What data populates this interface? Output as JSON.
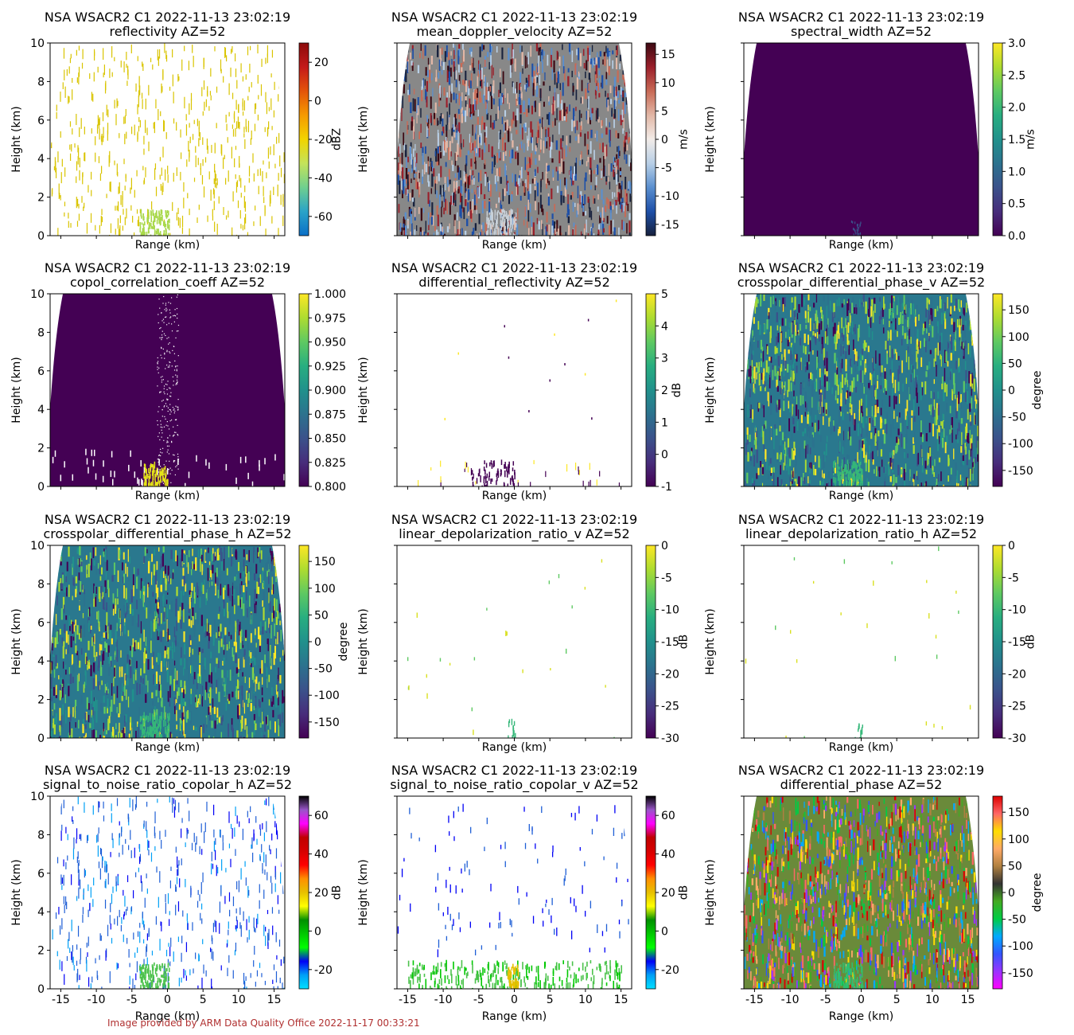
{
  "footer": "Image provided by ARM Data Quality Office 2022-11-17 00:33:21",
  "chart_data": [
    {
      "type": "heatmap",
      "title": "NSA WSACR2 C1 2022-11-13 23:02:19",
      "subtitle": "reflectivity  AZ=52",
      "xlabel": "Range (km)",
      "ylabel": "Height (km)",
      "xlim": [
        -16.5,
        16.5
      ],
      "ylim": [
        0,
        10
      ],
      "xticks": [
        "-15",
        "-10",
        "-5",
        "0",
        "5",
        "10",
        "15"
      ],
      "yticks": [
        "0",
        "2",
        "4",
        "6",
        "8",
        "10"
      ],
      "show_xticklabels": false,
      "show_yticklabels": true,
      "colorbar": {
        "label": "dBZ",
        "min": -70,
        "max": 30,
        "ticks": [
          "-60",
          "-40",
          "-20",
          "0",
          "20"
        ],
        "colormap": "HomeyerRainbow"
      },
      "pattern": "sparse_streaks",
      "base_color": "#d9c400",
      "bg_fill": false,
      "core_color": "#a8d84a"
    },
    {
      "type": "heatmap",
      "title": "NSA WSACR2 C1 2022-11-13 23:02:19",
      "subtitle": "mean_doppler_velocity  AZ=52",
      "xlabel": "Range (km)",
      "ylabel": "Height (km)",
      "xlim": [
        -16.5,
        16.5
      ],
      "ylim": [
        0,
        10
      ],
      "xticks": [
        "-15",
        "-10",
        "-5",
        "0",
        "5",
        "10",
        "15"
      ],
      "yticks": [
        "0",
        "2",
        "4",
        "6",
        "8",
        "10"
      ],
      "show_xticklabels": false,
      "show_yticklabels": false,
      "colorbar": {
        "label": "m/s",
        "min": -17,
        "max": 17,
        "ticks": [
          "-15",
          "-10",
          "-5",
          "0",
          "5",
          "10",
          "15"
        ],
        "colormap": "balance"
      },
      "pattern": "noise_fill",
      "base_color": "#888888",
      "bg_fill": true,
      "core_color": "#c8d0d8"
    },
    {
      "type": "heatmap",
      "title": "NSA WSACR2 C1 2022-11-13 23:02:19",
      "subtitle": "spectral_width  AZ=52",
      "xlabel": "Range (km)",
      "ylabel": "Height (km)",
      "xlim": [
        -16.5,
        16.5
      ],
      "ylim": [
        0,
        10
      ],
      "xticks": [
        "-15",
        "-10",
        "-5",
        "0",
        "5",
        "10",
        "15"
      ],
      "yticks": [
        "0",
        "2",
        "4",
        "6",
        "8",
        "10"
      ],
      "show_xticklabels": false,
      "show_yticklabels": false,
      "colorbar": {
        "label": "m/s",
        "min": 0,
        "max": 3,
        "ticks": [
          "0.0",
          "0.5",
          "1.0",
          "1.5",
          "2.0",
          "2.5",
          "3.0"
        ],
        "colormap": "viridis"
      },
      "pattern": "solid",
      "base_color": "#440154",
      "bg_fill": true,
      "core_color": "#3b528b"
    },
    {
      "type": "heatmap",
      "title": "NSA WSACR2 C1 2022-11-13 23:02:19",
      "subtitle": "copol_correlation_coeff  AZ=52",
      "xlabel": "Range (km)",
      "ylabel": "Height (km)",
      "xlim": [
        -16.5,
        16.5
      ],
      "ylim": [
        0,
        10
      ],
      "xticks": [
        "-15",
        "-10",
        "-5",
        "0",
        "5",
        "10",
        "15"
      ],
      "yticks": [
        "0",
        "2",
        "4",
        "6",
        "8",
        "10"
      ],
      "show_xticklabels": false,
      "show_yticklabels": true,
      "colorbar": {
        "label": "",
        "min": 0.8,
        "max": 1.0,
        "ticks": [
          "0.800",
          "0.825",
          "0.850",
          "0.875",
          "0.900",
          "0.925",
          "0.950",
          "0.975",
          "1.000"
        ],
        "colormap": "viridis"
      },
      "pattern": "solid",
      "base_color": "#440154",
      "bg_fill": true,
      "core_color": "#e5e419"
    },
    {
      "type": "heatmap",
      "title": "NSA WSACR2 C1 2022-11-13 23:02:19",
      "subtitle": "differential_reflectivity  AZ=52",
      "xlabel": "Range (km)",
      "ylabel": "Height (km)",
      "xlim": [
        -16.5,
        16.5
      ],
      "ylim": [
        0,
        10
      ],
      "xticks": [
        "-15",
        "-10",
        "-5",
        "0",
        "5",
        "10",
        "15"
      ],
      "yticks": [
        "0",
        "2",
        "4",
        "6",
        "8",
        "10"
      ],
      "show_xticklabels": false,
      "show_yticklabels": false,
      "colorbar": {
        "label": "dB",
        "min": -1,
        "max": 5,
        "ticks": [
          "-1",
          "0",
          "1",
          "2",
          "3",
          "4",
          "5"
        ],
        "colormap": "viridis"
      },
      "pattern": "sparse_low",
      "base_color": "#440154",
      "bg_fill": false,
      "core_color": "#440154"
    },
    {
      "type": "heatmap",
      "title": "NSA WSACR2 C1 2022-11-13 23:02:19",
      "subtitle": "crosspolar_differential_phase_v  AZ=52",
      "xlabel": "Range (km)",
      "ylabel": "Height (km)",
      "xlim": [
        -16.5,
        16.5
      ],
      "ylim": [
        0,
        10
      ],
      "xticks": [
        "-15",
        "-10",
        "-5",
        "0",
        "5",
        "10",
        "15"
      ],
      "yticks": [
        "0",
        "2",
        "4",
        "6",
        "8",
        "10"
      ],
      "show_xticklabels": false,
      "show_yticklabels": false,
      "colorbar": {
        "label": "degree",
        "min": -180,
        "max": 180,
        "ticks": [
          "-150",
          "-100",
          "-50",
          "0",
          "50",
          "100",
          "150"
        ],
        "colormap": "viridis"
      },
      "pattern": "noise_fill",
      "base_color": "#2a788e",
      "bg_fill": true,
      "core_color": "#35b779"
    },
    {
      "type": "heatmap",
      "title": "NSA WSACR2 C1 2022-11-13 23:02:19",
      "subtitle": "crosspolar_differential_phase_h  AZ=52",
      "xlabel": "Range (km)",
      "ylabel": "Height (km)",
      "xlim": [
        -16.5,
        16.5
      ],
      "ylim": [
        0,
        10
      ],
      "xticks": [
        "-15",
        "-10",
        "-5",
        "0",
        "5",
        "10",
        "15"
      ],
      "yticks": [
        "0",
        "2",
        "4",
        "6",
        "8",
        "10"
      ],
      "show_xticklabels": false,
      "show_yticklabels": true,
      "colorbar": {
        "label": "degree",
        "min": -180,
        "max": 180,
        "ticks": [
          "-150",
          "-100",
          "-50",
          "0",
          "50",
          "100",
          "150"
        ],
        "colormap": "viridis"
      },
      "pattern": "noise_fill",
      "base_color": "#2a788e",
      "bg_fill": true,
      "core_color": "#35b779"
    },
    {
      "type": "heatmap",
      "title": "NSA WSACR2 C1 2022-11-13 23:02:19",
      "subtitle": "linear_depolarization_ratio_v  AZ=52",
      "xlabel": "Range (km)",
      "ylabel": "Height (km)",
      "xlim": [
        -16.5,
        16.5
      ],
      "ylim": [
        0,
        10
      ],
      "xticks": [
        "-15",
        "-10",
        "-5",
        "0",
        "5",
        "10",
        "15"
      ],
      "yticks": [
        "0",
        "2",
        "4",
        "6",
        "8",
        "10"
      ],
      "show_xticklabels": false,
      "show_yticklabels": false,
      "colorbar": {
        "label": "dB",
        "min": -30,
        "max": 0,
        "ticks": [
          "-30",
          "-25",
          "-20",
          "-15",
          "-10",
          "-5",
          "0"
        ],
        "colormap": "viridis"
      },
      "pattern": "very_sparse",
      "base_color": "#d9e021",
      "bg_fill": false,
      "core_color": "#35b779"
    },
    {
      "type": "heatmap",
      "title": "NSA WSACR2 C1 2022-11-13 23:02:19",
      "subtitle": "linear_depolarization_ratio_h  AZ=52",
      "xlabel": "Range (km)",
      "ylabel": "Height (km)",
      "xlim": [
        -16.5,
        16.5
      ],
      "ylim": [
        0,
        10
      ],
      "xticks": [
        "-15",
        "-10",
        "-5",
        "0",
        "5",
        "10",
        "15"
      ],
      "yticks": [
        "0",
        "2",
        "4",
        "6",
        "8",
        "10"
      ],
      "show_xticklabels": false,
      "show_yticklabels": false,
      "colorbar": {
        "label": "dB",
        "min": -30,
        "max": 0,
        "ticks": [
          "-30",
          "-25",
          "-20",
          "-15",
          "-10",
          "-5",
          "0"
        ],
        "colormap": "viridis"
      },
      "pattern": "very_sparse",
      "base_color": "#d9e021",
      "bg_fill": false,
      "core_color": "#35b779"
    },
    {
      "type": "heatmap",
      "title": "NSA WSACR2 C1 2022-11-13 23:02:19",
      "subtitle": "signal_to_noise_ratio_copolar_h  AZ=52",
      "xlabel": "Range (km)",
      "ylabel": "Height (km)",
      "xlim": [
        -16.5,
        16.5
      ],
      "ylim": [
        0,
        10
      ],
      "xticks": [
        "-15",
        "-10",
        "-5",
        "0",
        "5",
        "10",
        "15"
      ],
      "yticks": [
        "0",
        "2",
        "4",
        "6",
        "8",
        "10"
      ],
      "show_xticklabels": true,
      "show_yticklabels": true,
      "colorbar": {
        "label": "dB",
        "min": -30,
        "max": 70,
        "ticks": [
          "-20",
          "0",
          "20",
          "40",
          "60"
        ],
        "colormap": "NWSRef"
      },
      "pattern": "sparse_streaks",
      "base_color": "#1f5fd6",
      "bg_fill": false,
      "core_color": "#4cc24c"
    },
    {
      "type": "heatmap",
      "title": "NSA WSACR2 C1 2022-11-13 23:02:19",
      "subtitle": "signal_to_noise_ratio_copolar_v  AZ=52",
      "xlabel": "Range (km)",
      "ylabel": "Height (km)",
      "xlim": [
        -16.5,
        16.5
      ],
      "ylim": [
        0,
        10
      ],
      "xticks": [
        "-15",
        "-10",
        "-5",
        "0",
        "5",
        "10",
        "15"
      ],
      "yticks": [
        "0",
        "2",
        "4",
        "6",
        "8",
        "10"
      ],
      "show_xticklabels": true,
      "show_yticklabels": false,
      "colorbar": {
        "label": "dB",
        "min": -30,
        "max": 70,
        "ticks": [
          "-20",
          "0",
          "20",
          "40",
          "60"
        ],
        "colormap": "NWSRef"
      },
      "pattern": "band_low",
      "base_color": "#1f5fd6",
      "bg_fill": false,
      "core_color": "#4cc24c"
    },
    {
      "type": "heatmap",
      "title": "NSA WSACR2 C1 2022-11-13 23:02:19",
      "subtitle": "differential_phase  AZ=52",
      "xlabel": "Range (km)",
      "ylabel": "Height (km)",
      "xlim": [
        -16.5,
        16.5
      ],
      "ylim": [
        0,
        10
      ],
      "xticks": [
        "-15",
        "-10",
        "-5",
        "0",
        "5",
        "10",
        "15"
      ],
      "yticks": [
        "0",
        "2",
        "4",
        "6",
        "8",
        "10"
      ],
      "show_xticklabels": true,
      "show_yticklabels": false,
      "colorbar": {
        "label": "degree",
        "min": -180,
        "max": 180,
        "ticks": [
          "-150",
          "-100",
          "-50",
          "0",
          "50",
          "100",
          "150"
        ],
        "colormap": "phase"
      },
      "pattern": "noise_fill",
      "base_color": "#6a8a3a",
      "bg_fill": true,
      "core_color": "#2ec070"
    }
  ]
}
